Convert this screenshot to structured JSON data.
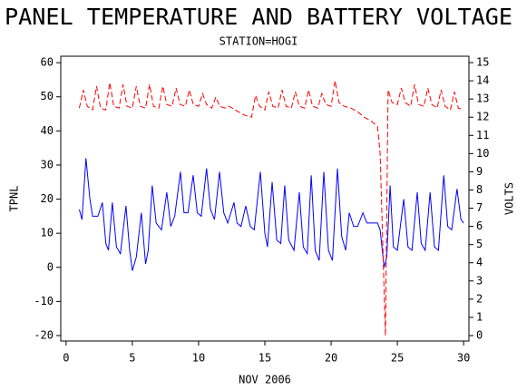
{
  "chart_data": {
    "type": "line",
    "title": "PANEL TEMPERATURE AND BATTERY VOLTAGE",
    "subtitle": "STATION=HOGI",
    "xlabel": "NOV 2006",
    "ylabel": "TPNL",
    "y2label": "VOLTS",
    "xlim": [
      -0.4,
      30.4
    ],
    "xticks": [
      0,
      5,
      10,
      15,
      20,
      25,
      30
    ],
    "ylim": [
      -21.6,
      61.9
    ],
    "yticks": [
      -20,
      -10,
      0,
      10,
      20,
      30,
      40,
      50,
      60
    ],
    "y2lim": [
      -0.3,
      15.35
    ],
    "y2ticks": [
      0,
      1,
      2,
      3,
      4,
      5,
      6,
      7,
      8,
      9,
      10,
      11,
      12,
      13,
      14,
      15
    ],
    "grid": false,
    "series": [
      {
        "color": "#0000ff",
        "dash": false,
        "x": [
          1.0,
          1.2,
          1.5,
          1.8,
          2.0,
          2.4,
          2.74,
          3.0,
          3.2,
          3.49,
          3.8,
          4.1,
          4.52,
          4.8,
          5.0,
          5.3,
          5.68,
          6.0,
          6.2,
          6.5,
          6.8,
          7.2,
          7.6,
          7.9,
          8.2,
          8.63,
          8.9,
          9.2,
          9.59,
          9.9,
          10.2,
          10.6,
          10.9,
          11.2,
          11.58,
          11.9,
          12.2,
          12.67,
          12.9,
          13.2,
          13.56,
          13.9,
          14.2,
          14.66,
          15.0,
          15.2,
          15.55,
          15.9,
          16.2,
          16.5,
          16.8,
          17.2,
          17.6,
          17.9,
          18.2,
          18.5,
          18.8,
          19.1,
          19.45,
          19.8,
          20.1,
          20.48,
          20.8,
          21.1,
          21.37,
          21.7,
          22.0,
          22.4,
          22.7,
          23.0,
          23.5,
          23.7,
          24.0,
          24.2,
          24.45,
          24.7,
          25.0,
          25.48,
          25.8,
          26.1,
          26.5,
          26.8,
          27.1,
          27.47,
          27.8,
          28.1,
          28.5,
          28.8,
          29.1,
          29.5,
          29.8,
          30.0
        ],
        "values": [
          17,
          14,
          32,
          20,
          15,
          15,
          19,
          7,
          5,
          19,
          6,
          4,
          18,
          5,
          -1,
          3,
          16,
          1,
          5,
          24,
          13,
          11,
          22,
          12,
          15,
          28,
          16,
          16,
          27,
          16,
          15,
          29,
          17,
          14,
          28,
          16,
          13,
          19,
          13,
          12,
          18,
          12,
          11,
          28,
          10,
          6,
          25,
          8,
          7,
          24,
          8,
          5,
          22,
          6,
          4,
          27,
          5,
          2,
          28,
          5,
          2,
          29,
          9,
          5,
          16,
          12,
          12,
          16,
          13,
          13,
          13,
          11,
          0,
          3,
          24,
          6,
          5,
          20,
          6,
          5,
          22,
          7,
          5,
          22,
          6,
          5,
          27,
          12,
          11,
          23,
          14,
          13
        ]
      },
      {
        "color": "#ff0000",
        "dash": true,
        "axis": "y2",
        "x": [
          1.0,
          1.3,
          1.6,
          2.0,
          2.3,
          2.6,
          3.0,
          3.3,
          3.6,
          4.0,
          4.3,
          4.6,
          5.0,
          5.3,
          5.6,
          6.0,
          6.3,
          6.6,
          7.0,
          7.3,
          7.6,
          8.0,
          8.3,
          8.6,
          9.0,
          9.3,
          9.6,
          10.0,
          10.3,
          10.6,
          11.0,
          11.3,
          11.6,
          12.0,
          12.3,
          13.0,
          13.5,
          14.0,
          14.3,
          14.6,
          15.0,
          15.3,
          15.6,
          16.0,
          16.3,
          16.6,
          17.0,
          17.3,
          17.6,
          18.0,
          18.3,
          18.6,
          19.0,
          19.3,
          19.6,
          20.0,
          20.3,
          20.6,
          21.0,
          21.5,
          22.0,
          22.5,
          23.0,
          23.5,
          23.7,
          24.1,
          24.3,
          24.6,
          25.0,
          25.3,
          25.6,
          26.0,
          26.3,
          26.6,
          27.0,
          27.3,
          27.6,
          28.0,
          28.3,
          28.6,
          29.0,
          29.3,
          29.6,
          30.0
        ],
        "values": [
          12.5,
          13.5,
          12.6,
          12.4,
          13.7,
          12.5,
          12.4,
          13.9,
          12.6,
          12.5,
          13.8,
          12.6,
          12.5,
          13.7,
          12.6,
          12.5,
          13.8,
          12.6,
          12.5,
          13.7,
          12.7,
          12.6,
          13.6,
          12.7,
          12.6,
          13.5,
          12.7,
          12.6,
          13.3,
          12.7,
          12.5,
          13.1,
          12.6,
          12.5,
          12.6,
          12.3,
          12.1,
          12.0,
          13.2,
          12.6,
          12.4,
          13.4,
          12.6,
          12.5,
          13.5,
          12.6,
          12.5,
          13.4,
          12.6,
          12.5,
          13.5,
          12.6,
          12.5,
          13.3,
          12.7,
          12.6,
          14.0,
          12.8,
          12.6,
          12.5,
          12.3,
          12.0,
          11.8,
          11.5,
          10.0,
          0.0,
          13.5,
          12.8,
          12.7,
          13.6,
          12.8,
          12.6,
          13.8,
          12.7,
          12.6,
          13.6,
          12.7,
          12.5,
          13.5,
          12.6,
          12.4,
          13.4,
          12.5,
          12.4
        ]
      }
    ]
  }
}
